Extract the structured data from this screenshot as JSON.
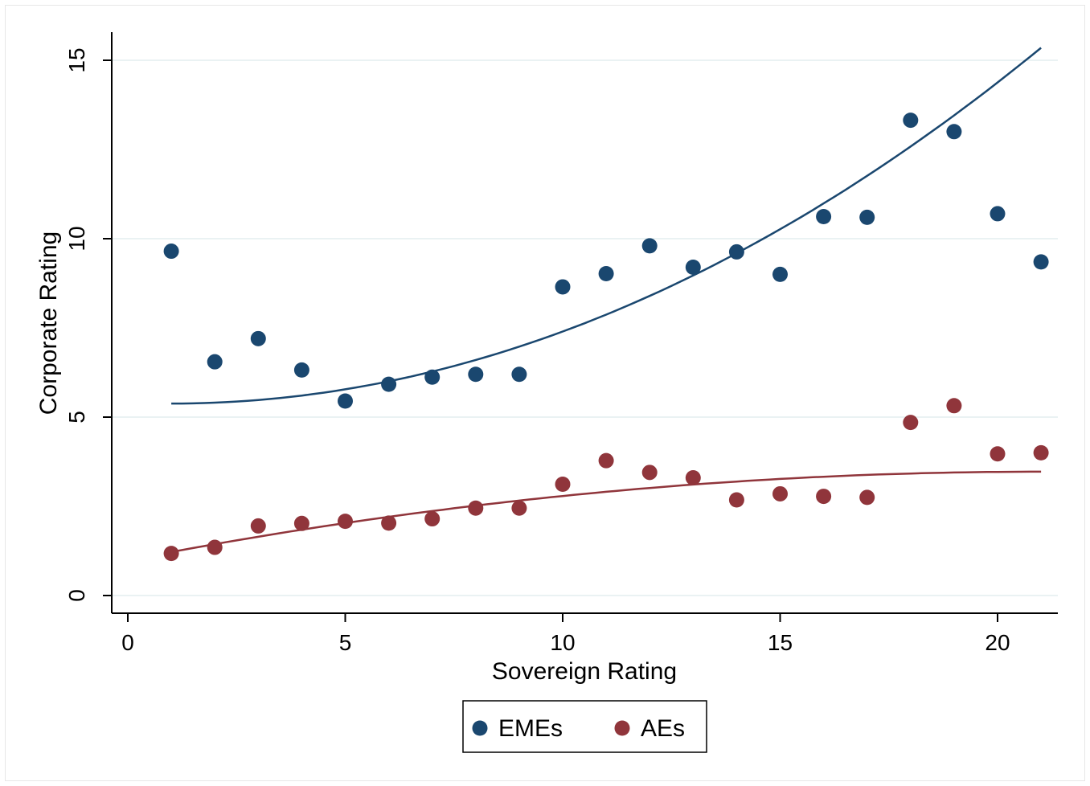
{
  "chart_data": {
    "type": "scatter",
    "title": "",
    "xlabel": "Sovereign Rating",
    "ylabel": "Corporate Rating",
    "xlim": [
      -0.3,
      21.5
    ],
    "ylim": [
      -0.6,
      15.8
    ],
    "xticks": [
      0,
      5,
      10,
      15,
      20
    ],
    "yticks": [
      0,
      5,
      10,
      15
    ],
    "grid": "horizontal",
    "legend_position": "bottom",
    "series": [
      {
        "name": "EMEs",
        "color": "#1a476f",
        "x": [
          1,
          2,
          3,
          4,
          5,
          6,
          7,
          8,
          9,
          10,
          11,
          12,
          13,
          14,
          15,
          16,
          17,
          18,
          19,
          20,
          21
        ],
        "y": [
          9.65,
          6.55,
          7.2,
          6.32,
          5.45,
          5.92,
          6.12,
          6.2,
          6.2,
          8.65,
          9.02,
          9.8,
          9.2,
          9.63,
          9.0,
          10.62,
          10.6,
          13.32,
          13.0,
          10.7,
          9.35
        ],
        "fit": {
          "type": "quadratic",
          "x_range": [
            1,
            21
          ],
          "y_start": 5.38,
          "y_end": 15.35
        }
      },
      {
        "name": "AEs",
        "color": "#90353b",
        "x": [
          1,
          2,
          3,
          4,
          5,
          6,
          7,
          8,
          9,
          10,
          11,
          12,
          13,
          14,
          15,
          16,
          17,
          18,
          19,
          20,
          21
        ],
        "y": [
          1.18,
          1.35,
          1.95,
          2.02,
          2.08,
          2.03,
          2.15,
          2.45,
          2.45,
          3.12,
          3.78,
          3.45,
          3.3,
          2.68,
          2.85,
          2.78,
          2.75,
          4.85,
          5.32,
          3.97,
          4.0
        ],
        "fit": {
          "type": "quadratic",
          "x_range": [
            1,
            21
          ],
          "y_start": 1.22,
          "y_end": 3.47
        }
      }
    ]
  }
}
